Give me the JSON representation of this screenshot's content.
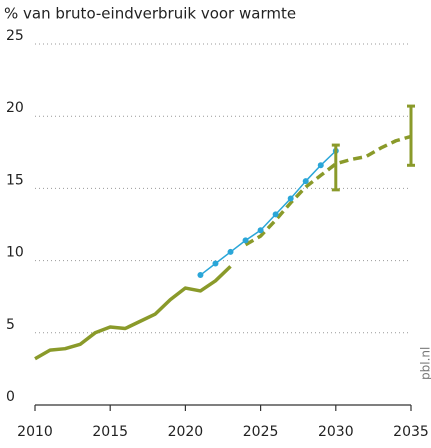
{
  "chart_data": {
    "type": "line",
    "title": "% van bruto-eindverbruik voor warmte",
    "watermark": "pbl.nl",
    "xlim": [
      2010,
      2035
    ],
    "xticks": [
      2010,
      2015,
      2020,
      2025,
      2030,
      2035
    ],
    "ylim": [
      0,
      25
    ],
    "yticks": [
      0,
      5,
      10,
      15,
      20,
      25
    ],
    "grid": true,
    "series": [
      {
        "color": "#8a9a2a",
        "dashed": false,
        "x": [
          2010,
          2011,
          2012,
          2013,
          2014,
          2015,
          2016,
          2017,
          2018,
          2019,
          2020,
          2021,
          2022,
          2023
        ],
        "values": [
          3.2,
          3.8,
          3.9,
          4.2,
          5.0,
          5.4,
          5.3,
          5.8,
          6.3,
          7.3,
          8.1,
          7.9,
          8.6,
          9.6
        ]
      },
      {
        "color": "#8a9a2a",
        "dashed": true,
        "x": [
          2024,
          2025,
          2026,
          2027,
          2028,
          2029,
          2030,
          2031,
          2032,
          2033,
          2034,
          2035
        ],
        "values": [
          11.1,
          11.7,
          12.8,
          14.0,
          15.1,
          15.9,
          16.7,
          17.0,
          17.2,
          17.8,
          18.3,
          18.6
        ]
      },
      {
        "color": "#2aa6d8",
        "dashed": false,
        "markers": true,
        "x": [
          2021,
          2022,
          2023,
          2024,
          2025,
          2026,
          2027,
          2028,
          2029,
          2030
        ],
        "values": [
          9.0,
          9.8,
          10.6,
          11.4,
          12.1,
          13.2,
          14.3,
          15.5,
          16.6,
          17.6
        ]
      }
    ],
    "ranges": {
      "color": "#8a9a2a",
      "x": [
        2030,
        2035
      ],
      "low": [
        14.9,
        16.6
      ],
      "high": [
        18.0,
        20.7
      ]
    }
  }
}
